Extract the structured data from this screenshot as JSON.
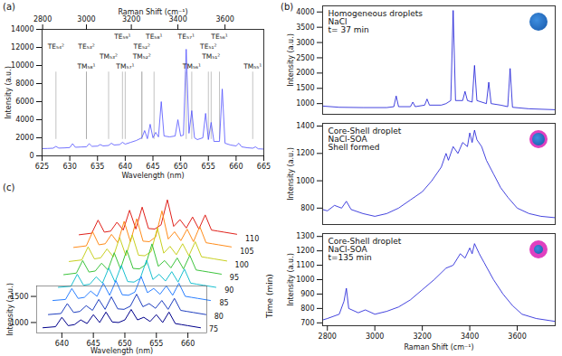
{
  "chart_data": [
    {
      "type": "line",
      "title": "(a)",
      "xlabel": "Wavelength (nm)",
      "ylabel": "Intensity (a.u.)",
      "x2label": "Raman Shift (cm⁻¹)",
      "xlim": [
        625,
        665
      ],
      "xticks": [
        625,
        630,
        635,
        640,
        645,
        650,
        655,
        660,
        665
      ],
      "ylim": [
        0,
        14000
      ],
      "yticks": [
        0,
        2000,
        4000,
        6000,
        8000,
        10000,
        12000,
        14000
      ],
      "x2ticks": [
        {
          "value": 625.1,
          "label": "2800"
        },
        {
          "value": 633.0,
          "label": "3000"
        },
        {
          "value": 641.1,
          "label": "3200"
        },
        {
          "value": 649.5,
          "label": "3400"
        },
        {
          "value": 658.0,
          "label": "3600"
        }
      ],
      "color": "#5050ff",
      "x": [
        625,
        626,
        627,
        627.5,
        628,
        629,
        630,
        630.5,
        631,
        632,
        633,
        633.5,
        634,
        635,
        635.5,
        636,
        637,
        637.5,
        638,
        639,
        639.5,
        640,
        641,
        642,
        643,
        643.5,
        644,
        644.5,
        645,
        645.5,
        646,
        646.5,
        647,
        648,
        649,
        649.5,
        650,
        650.5,
        651,
        651.5,
        652,
        652.5,
        653,
        654,
        654.5,
        655,
        655.5,
        656,
        657,
        657.5,
        658,
        659,
        660,
        660.5,
        661,
        662,
        663,
        663.5,
        664,
        665
      ],
      "values": [
        800,
        820,
        850,
        1050,
        860,
        880,
        920,
        1350,
        950,
        980,
        1000,
        1350,
        1050,
        1080,
        1250,
        1100,
        1150,
        1400,
        1200,
        1250,
        1500,
        1300,
        1500,
        1700,
        2000,
        2800,
        1900,
        3500,
        2000,
        2600,
        2100,
        6000,
        2200,
        2100,
        2200,
        4000,
        2200,
        2300,
        11800,
        2500,
        5000,
        2000,
        1800,
        2000,
        4700,
        1800,
        3700,
        1600,
        1600,
        7400,
        1400,
        1200,
        1100,
        1400,
        1000,
        900,
        850,
        1000,
        780,
        750
      ],
      "annotations": [
        {
          "text": "TE₅₉¹",
          "x": 639.5,
          "y": 13200
        },
        {
          "text": "TE₅₈¹",
          "x": 645.2,
          "y": 13200
        },
        {
          "text": "TE₅₇¹",
          "x": 651,
          "y": 13200
        },
        {
          "text": "TE₅₆¹",
          "x": 657,
          "y": 13200
        },
        {
          "text": "TE₅₄²",
          "x": 627.5,
          "y": 12100
        },
        {
          "text": "TE₅₃²",
          "x": 633,
          "y": 12100
        },
        {
          "text": "TE₅₂²",
          "x": 643,
          "y": 12100
        },
        {
          "text": "TE₅₁²",
          "x": 655,
          "y": 12100
        },
        {
          "text": "TM₅₃²",
          "x": 637,
          "y": 11000
        },
        {
          "text": "TM₅₂²",
          "x": 643,
          "y": 11000
        },
        {
          "text": "TM₅₁²",
          "x": 655.5,
          "y": 11000
        },
        {
          "text": "TM₅₈¹",
          "x": 633,
          "y": 9900
        },
        {
          "text": "TM₅₇¹",
          "x": 640,
          "y": 9900
        },
        {
          "text": "TM₅₆¹",
          "x": 652,
          "y": 9900
        },
        {
          "text": "TM₅₅¹",
          "x": 663,
          "y": 9900
        }
      ]
    },
    {
      "type": "line",
      "title": "(b)",
      "xlabel": "Raman Shift (cm⁻¹)",
      "ylabel": "Intensity (a.u.)",
      "xlim": [
        2780,
        3760
      ],
      "xticks": [
        2800,
        3000,
        3200,
        3400,
        3600
      ],
      "color": "#1515d6",
      "subplots": [
        {
          "annotations": [
            "Homogeneous droplets",
            "NaCl",
            "t= 37 min"
          ],
          "ylim": [
            650,
            4200
          ],
          "yticks": [
            1000,
            1500,
            2000,
            2500,
            3000,
            3500,
            4000
          ],
          "tick_labels": "y",
          "x": [
            2780,
            2850,
            2950,
            3050,
            3080,
            3090,
            3100,
            3150,
            3160,
            3170,
            3210,
            3220,
            3230,
            3280,
            3300,
            3320,
            3330,
            3340,
            3370,
            3380,
            3390,
            3410,
            3420,
            3430,
            3470,
            3480,
            3490,
            3530,
            3560,
            3570,
            3580,
            3650,
            3760
          ],
          "values": [
            920,
            880,
            870,
            870,
            900,
            1250,
            900,
            900,
            1050,
            900,
            950,
            1150,
            950,
            950,
            1000,
            1100,
            4050,
            1100,
            1100,
            1400,
            1100,
            1050,
            2250,
            1100,
            1000,
            1700,
            1000,
            950,
            900,
            2150,
            880,
            830,
            800
          ]
        },
        {
          "annotations": [
            "Core-Shell droplet",
            "NaCl-SOA",
            "Shell formed"
          ],
          "ylim": [
            680,
            1420
          ],
          "yticks": [
            800,
            1000,
            1200,
            1400
          ],
          "tick_labels": "y",
          "x": [
            2780,
            2800,
            2830,
            2860,
            2880,
            2900,
            2950,
            3000,
            3050,
            3100,
            3150,
            3200,
            3240,
            3280,
            3300,
            3310,
            3330,
            3350,
            3370,
            3390,
            3400,
            3410,
            3420,
            3430,
            3450,
            3470,
            3500,
            3530,
            3560,
            3600,
            3650,
            3700,
            3760
          ],
          "values": [
            790,
            780,
            820,
            800,
            850,
            790,
            760,
            740,
            760,
            800,
            860,
            920,
            1000,
            1100,
            1200,
            1150,
            1250,
            1200,
            1280,
            1250,
            1350,
            1280,
            1370,
            1300,
            1250,
            1150,
            1050,
            950,
            880,
            800,
            760,
            740,
            730
          ]
        },
        {
          "annotations": [
            "Core-Shell droplet",
            "NaCl-SOA",
            "t=135 min"
          ],
          "ylim": [
            680,
            1320
          ],
          "yticks": [
            700,
            800,
            900,
            1000,
            1100,
            1200,
            1300
          ],
          "x": [
            2780,
            2800,
            2850,
            2870,
            2880,
            2890,
            2930,
            2960,
            3000,
            3050,
            3100,
            3150,
            3200,
            3250,
            3300,
            3330,
            3360,
            3380,
            3400,
            3410,
            3420,
            3440,
            3460,
            3500,
            3540,
            3580,
            3620,
            3680,
            3760
          ],
          "values": [
            720,
            730,
            760,
            850,
            940,
            800,
            770,
            790,
            760,
            780,
            810,
            860,
            930,
            1000,
            1080,
            1100,
            1180,
            1150,
            1220,
            1180,
            1250,
            1180,
            1120,
            1000,
            900,
            820,
            760,
            730,
            710
          ]
        }
      ]
    },
    {
      "type": "line",
      "title": "(c)",
      "xlabel": "Wavelength (nm)",
      "ylabel": "Intensity (a.u.)",
      "zlabel": "Time (min)",
      "xlim": [
        636,
        663
      ],
      "xticks": [
        640,
        645,
        650,
        655,
        660
      ],
      "ylim": [
        800,
        1700
      ],
      "yticks": [
        1000,
        1500
      ],
      "zlim": [
        75,
        110
      ],
      "zticks": [
        75,
        80,
        85,
        90,
        95,
        100,
        105,
        110
      ],
      "x": [
        637,
        639,
        640,
        641,
        642,
        643,
        644,
        645,
        646,
        647,
        648,
        649,
        650,
        651,
        652,
        653,
        654,
        655,
        656,
        657,
        658,
        659,
        660,
        662
      ],
      "series": [
        {
          "time": 75,
          "color": "#00008b",
          "values": [
            900,
            920,
            1100,
            940,
            960,
            1050,
            980,
            1150,
            1000,
            1200,
            1010,
            1000,
            1050,
            1250,
            1050,
            1100,
            1020,
            1150,
            1000,
            1200,
            980,
            960,
            940,
            900
          ]
        },
        {
          "time": 80,
          "color": "#1f3fbf",
          "values": [
            910,
            930,
            1120,
            950,
            970,
            1080,
            990,
            1200,
            1010,
            1250,
            1020,
            1010,
            1070,
            1300,
            1060,
            1120,
            1030,
            1180,
            1010,
            1220,
            990,
            970,
            950,
            910
          ]
        },
        {
          "time": 85,
          "color": "#2a7fff",
          "values": [
            920,
            940,
            1150,
            960,
            980,
            1100,
            1000,
            1250,
            1020,
            1300,
            1030,
            1020,
            1080,
            1380,
            1070,
            1150,
            1040,
            1200,
            1020,
            1250,
            1000,
            980,
            960,
            920
          ]
        },
        {
          "time": 90,
          "color": "#18c0d0",
          "values": [
            930,
            950,
            1180,
            970,
            990,
            1130,
            1010,
            1300,
            1030,
            1350,
            1040,
            1030,
            1100,
            1450,
            1080,
            1180,
            1050,
            1230,
            1030,
            1280,
            1010,
            990,
            970,
            930
          ]
        },
        {
          "time": 95,
          "color": "#3cc43c",
          "values": [
            930,
            960,
            1200,
            980,
            1000,
            1150,
            1020,
            1350,
            1040,
            1400,
            1050,
            1040,
            1120,
            1520,
            1090,
            1200,
            1060,
            1250,
            1040,
            1300,
            1020,
            1000,
            980,
            940
          ]
        },
        {
          "time": 100,
          "color": "#c8d020",
          "values": [
            940,
            970,
            1220,
            990,
            1010,
            1180,
            1030,
            1400,
            1050,
            1450,
            1060,
            1050,
            1130,
            1580,
            1100,
            1230,
            1070,
            1280,
            1050,
            1320,
            1030,
            1010,
            990,
            950
          ]
        },
        {
          "time": 105,
          "color": "#ff8c1a",
          "values": [
            950,
            980,
            1250,
            1000,
            1020,
            1200,
            1040,
            1450,
            1060,
            1500,
            1070,
            1060,
            1150,
            1650,
            1110,
            1250,
            1080,
            1300,
            1060,
            1350,
            1040,
            1020,
            1000,
            960
          ]
        },
        {
          "time": 110,
          "color": "#e0201a",
          "values": [
            950,
            980,
            1230,
            1000,
            1020,
            1190,
            1040,
            1420,
            1060,
            1480,
            1070,
            1060,
            1140,
            1620,
            1110,
            1240,
            1080,
            1290,
            1060,
            1330,
            1040,
            1020,
            1000,
            960
          ]
        }
      ]
    }
  ]
}
